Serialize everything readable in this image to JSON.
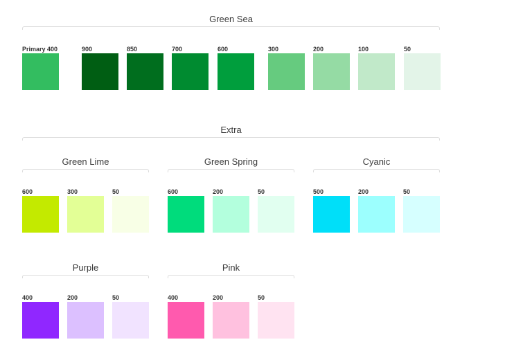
{
  "green_sea": {
    "title": "Green Sea",
    "swatches": [
      {
        "label": "Primary 400",
        "color": "#33bd60"
      },
      {
        "label": "900",
        "color": "#005e13"
      },
      {
        "label": "850",
        "color": "#006e1e"
      },
      {
        "label": "700",
        "color": "#008b30"
      },
      {
        "label": "600",
        "color": "#009e3d"
      },
      {
        "label": "300",
        "color": "#66cb7f"
      },
      {
        "label": "200",
        "color": "#95dba4"
      },
      {
        "label": "100",
        "color": "#c1e9c9"
      },
      {
        "label": "50",
        "color": "#e3f4e8"
      }
    ]
  },
  "extra": {
    "title": "Extra"
  },
  "green_lime": {
    "title": "Green Lime",
    "swatches": [
      {
        "label": "600",
        "color": "#c3ea00"
      },
      {
        "label": "300",
        "color": "#e3ff96"
      },
      {
        "label": "50",
        "color": "#f8ffe6"
      }
    ]
  },
  "green_spring": {
    "title": "Green Spring",
    "swatches": [
      {
        "label": "600",
        "color": "#00dc7c"
      },
      {
        "label": "200",
        "color": "#b3ffdd"
      },
      {
        "label": "50",
        "color": "#e1fff0"
      }
    ]
  },
  "cyanic": {
    "title": "Cyanic",
    "swatches": [
      {
        "label": "500",
        "color": "#00dff9"
      },
      {
        "label": "200",
        "color": "#9cfffe"
      },
      {
        "label": "50",
        "color": "#d6ffff"
      }
    ]
  },
  "purple": {
    "title": "Purple",
    "swatches": [
      {
        "label": "400",
        "color": "#9027ff"
      },
      {
        "label": "200",
        "color": "#dcc0ff"
      },
      {
        "label": "50",
        "color": "#f1e3ff"
      }
    ]
  },
  "pink": {
    "title": "Pink",
    "swatches": [
      {
        "label": "400",
        "color": "#ff5aae"
      },
      {
        "label": "200",
        "color": "#ffc1df"
      },
      {
        "label": "50",
        "color": "#ffe3f1"
      }
    ]
  }
}
